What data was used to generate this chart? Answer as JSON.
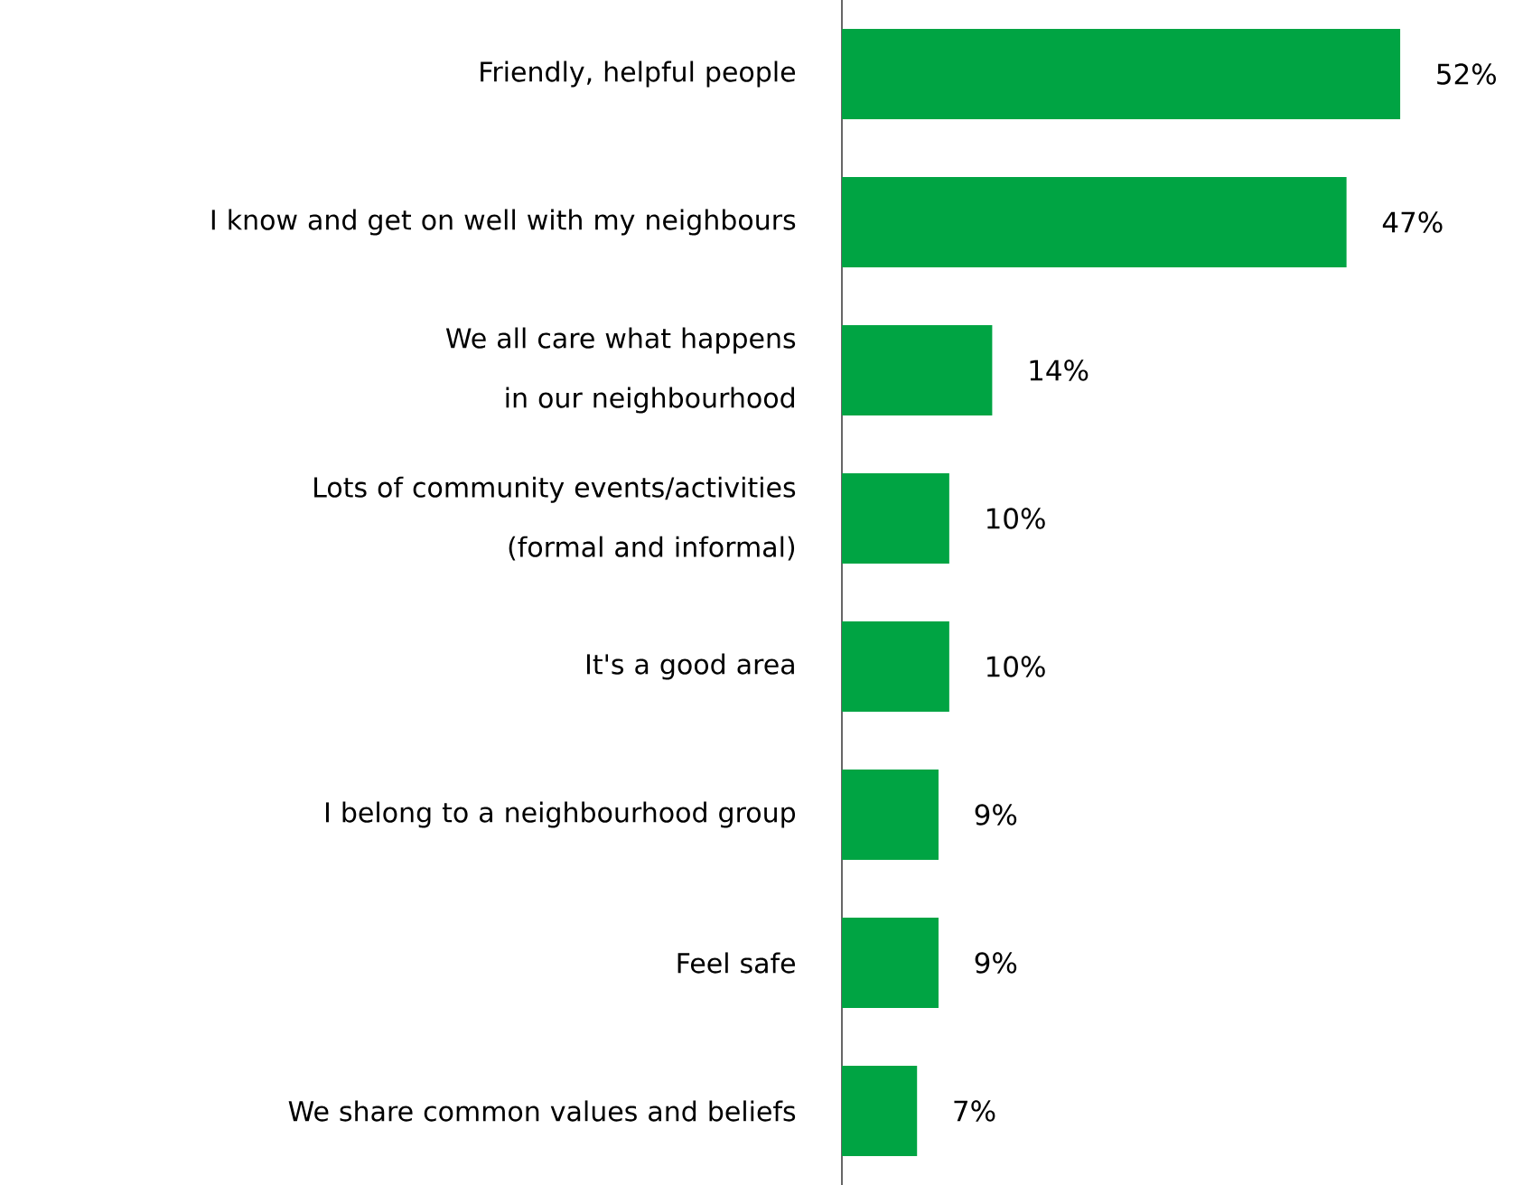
{
  "chart_data": {
    "type": "bar",
    "orientation": "horizontal",
    "color": "#00a443",
    "categories": [
      "Friendly, helpful people",
      "I know and get on well with my neighbours",
      "We all care what happens in our neighbourhood",
      "Lots of community events/activities (formal and informal)",
      "It's a good area",
      "I belong to a neighbourhood group",
      "Feel safe",
      "We share common values and beliefs"
    ],
    "values": [
      52,
      47,
      14,
      10,
      10,
      9,
      9,
      7
    ],
    "value_labels": [
      "52%",
      "47%",
      "14%",
      "10%",
      "10%",
      "9%",
      "9%",
      "7%"
    ]
  }
}
